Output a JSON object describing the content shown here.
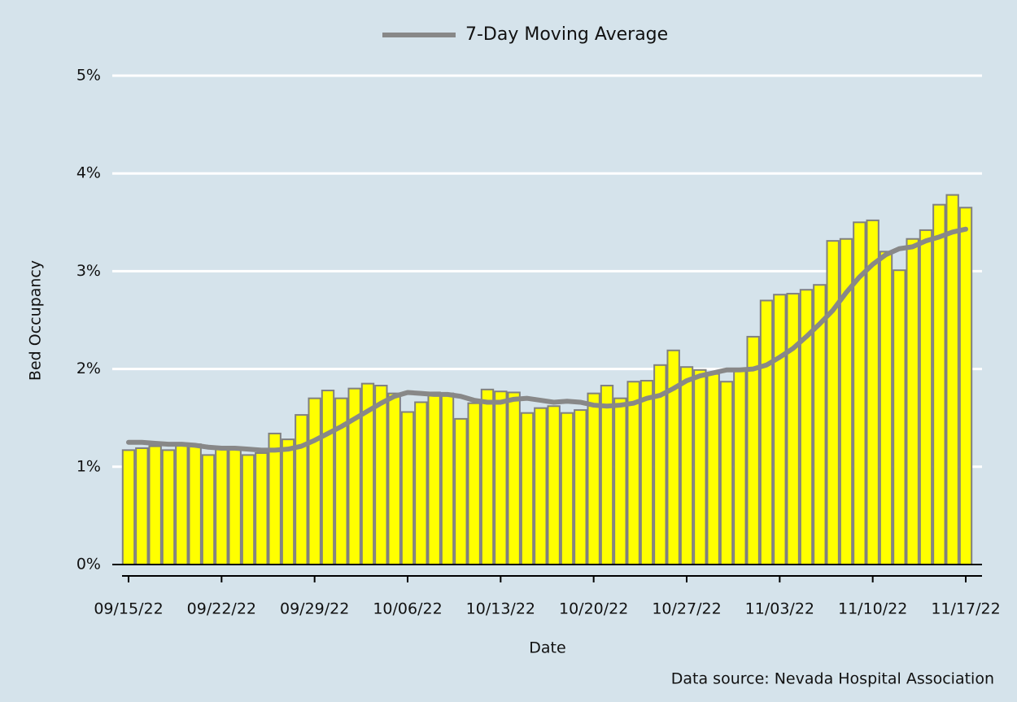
{
  "chart_data": {
    "type": "bar",
    "x_label": "Date",
    "y_label": "Bed Occupancy",
    "source": "Data source: Nevada Hospital Association",
    "categories": [
      "09/15/22",
      null,
      null,
      null,
      null,
      null,
      null,
      "09/22/22",
      null,
      null,
      null,
      null,
      null,
      null,
      "09/29/22",
      null,
      null,
      null,
      null,
      null,
      null,
      "10/06/22",
      null,
      null,
      null,
      null,
      null,
      null,
      "10/13/22",
      null,
      null,
      null,
      null,
      null,
      null,
      "10/20/22",
      null,
      null,
      null,
      null,
      null,
      null,
      "10/27/22",
      null,
      null,
      null,
      null,
      null,
      null,
      "11/03/22",
      null,
      null,
      null,
      null,
      null,
      null,
      "11/10/22",
      null,
      null,
      null,
      null,
      null,
      null,
      "11/17/22"
    ],
    "values": [
      1.17,
      1.19,
      1.21,
      1.17,
      1.24,
      1.23,
      1.12,
      1.18,
      1.18,
      1.12,
      1.14,
      1.34,
      1.28,
      1.53,
      1.7,
      1.78,
      1.7,
      1.8,
      1.85,
      1.83,
      1.75,
      1.56,
      1.66,
      1.76,
      1.75,
      1.49,
      1.65,
      1.79,
      1.77,
      1.76,
      1.55,
      1.6,
      1.62,
      1.55,
      1.58,
      1.75,
      1.83,
      1.7,
      1.87,
      1.88,
      2.04,
      2.19,
      2.02,
      1.99,
      1.95,
      1.87,
      1.98,
      2.33,
      2.7,
      2.76,
      2.77,
      2.81,
      2.86,
      3.31,
      3.33,
      3.5,
      3.52,
      3.2,
      3.01,
      3.33,
      3.42,
      3.68,
      3.78,
      3.65
    ],
    "color": "#ffff00",
    "edge_color": "#808080",
    "series": [
      {
        "name": "7-Day Moving Average",
        "color": "#888888",
        "values": [
          1.25,
          1.25,
          1.24,
          1.23,
          1.23,
          1.22,
          1.2,
          1.19,
          1.19,
          1.18,
          1.17,
          1.17,
          1.18,
          1.21,
          1.27,
          1.34,
          1.41,
          1.49,
          1.57,
          1.65,
          1.72,
          1.76,
          1.75,
          1.74,
          1.74,
          1.72,
          1.68,
          1.66,
          1.66,
          1.69,
          1.7,
          1.68,
          1.66,
          1.67,
          1.66,
          1.63,
          1.62,
          1.63,
          1.65,
          1.7,
          1.73,
          1.8,
          1.88,
          1.93,
          1.96,
          1.99,
          1.99,
          2.0,
          2.04,
          2.12,
          2.21,
          2.33,
          2.46,
          2.6,
          2.78,
          2.94,
          3.07,
          3.17,
          3.23,
          3.25,
          3.31,
          3.35,
          3.4,
          3.43
        ]
      }
    ],
    "ylim": [
      0,
      5
    ],
    "yticks": [
      {
        "value": 0,
        "label": "0%"
      },
      {
        "value": 1,
        "label": "1%"
      },
      {
        "value": 2,
        "label": "2%"
      },
      {
        "value": 3,
        "label": "3%"
      },
      {
        "value": 4,
        "label": "4%"
      },
      {
        "value": 5,
        "label": "5%"
      }
    ],
    "grid": true,
    "legend": "top"
  }
}
